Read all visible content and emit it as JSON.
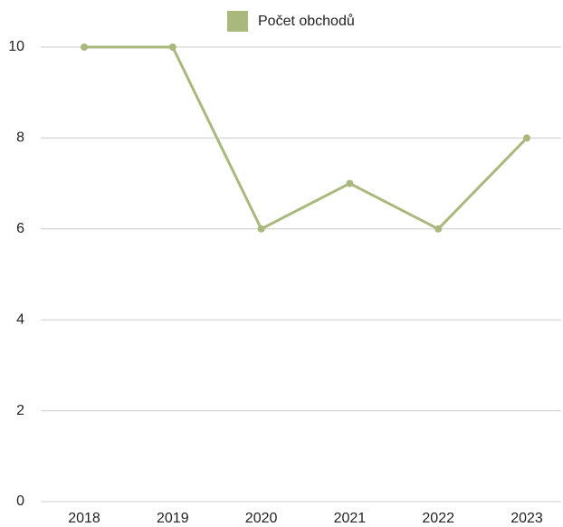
{
  "chart_data": {
    "type": "line",
    "categories": [
      "2018",
      "2019",
      "2020",
      "2021",
      "2022",
      "2023"
    ],
    "series": [
      {
        "name": "Počet obchodů",
        "color": "#a9b97d",
        "values": [
          10,
          10,
          6,
          7,
          6,
          8
        ]
      }
    ],
    "ylim": [
      0,
      10
    ],
    "yticks": [
      0,
      2,
      4,
      6,
      8,
      10
    ],
    "grid": true,
    "legend": "top"
  }
}
